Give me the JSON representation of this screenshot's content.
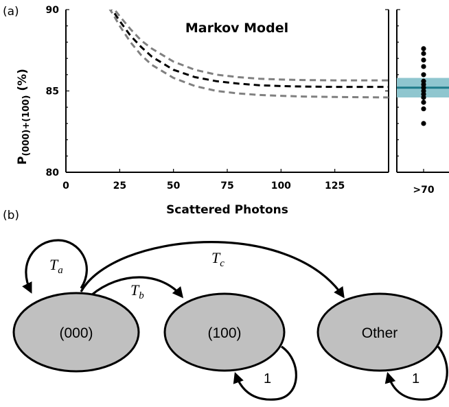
{
  "panel_a": {
    "label": "(a)",
    "title": "Markov Model",
    "ylabel_main": "P",
    "ylabel_sub": "(000)+(100)",
    "ylabel_unit": " (%)",
    "xlabel": "Scattered Photons",
    "side_tick": ">70"
  },
  "chart_data": [
    {
      "type": "line",
      "title": "Markov Model",
      "xlabel": "Scattered Photons",
      "ylabel": "P(000)+(100) (%)",
      "xlim": [
        0,
        150
      ],
      "ylim": [
        80,
        90
      ],
      "x_ticks": [
        "0",
        "25",
        "50",
        "75",
        "100",
        "125"
      ],
      "y_ticks": [
        "80",
        "85",
        "90"
      ],
      "series": [
        {
          "style": "dashed",
          "color": "#000000",
          "x": [
            20,
            22,
            25,
            30,
            35,
            40,
            50,
            60,
            70,
            80,
            90,
            100,
            110,
            125,
            150
          ],
          "y": [
            90.3,
            89.9,
            89.3,
            88.4,
            87.7,
            87.1,
            86.3,
            85.85,
            85.6,
            85.45,
            85.35,
            85.3,
            85.27,
            85.25,
            85.25
          ]
        },
        {
          "style": "dashed",
          "color": "#808080",
          "x": [
            20,
            22,
            25,
            30,
            35,
            40,
            50,
            60,
            70,
            80,
            90,
            100,
            110,
            125,
            150
          ],
          "y": [
            90.4,
            90.1,
            89.6,
            88.8,
            88.1,
            87.6,
            86.8,
            86.3,
            86.0,
            85.85,
            85.75,
            85.7,
            85.67,
            85.65,
            85.65
          ]
        },
        {
          "style": "dashed",
          "color": "#808080",
          "x": [
            20,
            22,
            25,
            30,
            35,
            40,
            50,
            60,
            70,
            80,
            90,
            100,
            110,
            125,
            150
          ],
          "y": [
            90.1,
            89.7,
            89.0,
            88.0,
            87.2,
            86.6,
            85.8,
            85.3,
            85.0,
            84.85,
            84.75,
            84.7,
            84.66,
            84.63,
            84.6
          ]
        }
      ]
    },
    {
      "type": "scatter",
      "x_ticks": [
        ">70"
      ],
      "ylim": [
        80,
        90
      ],
      "points": [
        87.6,
        87.3,
        86.9,
        86.5,
        86.0,
        85.6,
        85.4,
        85.2,
        85.0,
        84.8,
        84.6,
        84.3,
        83.9,
        83.0
      ],
      "mean_line": 85.2,
      "band": [
        84.6,
        85.8
      ],
      "band_color": "#8fc6cf",
      "line_color": "#1e7b8a"
    }
  ],
  "panel_b": {
    "label": "(b)",
    "nodes": [
      "(000)",
      "(100)",
      "Other"
    ],
    "edges": [
      {
        "sym": "T",
        "sub": "a"
      },
      {
        "sym": "T",
        "sub": "b"
      },
      {
        "sym": "T",
        "sub": "c"
      },
      {
        "text": "1"
      },
      {
        "text": "1"
      }
    ]
  }
}
